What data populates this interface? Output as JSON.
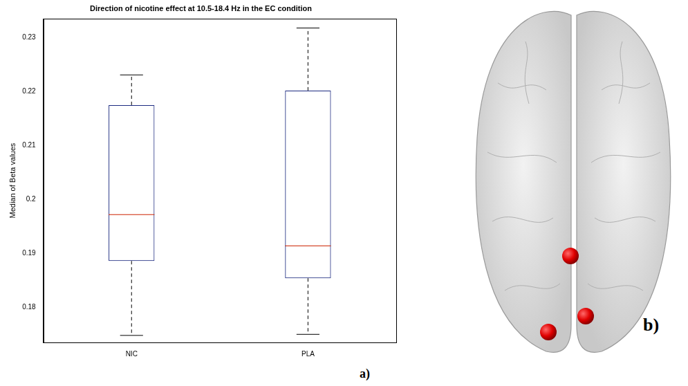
{
  "chart_data": {
    "type": "box",
    "title": "Direction of nicotine effect at 10.5-18.4 Hz in the EC condition",
    "ylabel": "Median of Beta values",
    "categories": [
      "NIC",
      "PLA"
    ],
    "whisker_low": [
      0.1748,
      0.175
    ],
    "q1": [
      0.1886,
      0.1854
    ],
    "median": [
      0.1972,
      0.1914
    ],
    "q3": [
      0.2175,
      0.2202
    ],
    "whisker_high": [
      0.2231,
      0.2318
    ],
    "color": "#1c2a80",
    "ylim": [
      0.1735,
      0.2335
    ],
    "yticks": [
      0.18,
      0.19,
      0.2,
      0.21,
      0.22,
      0.23
    ],
    "grid": false
  },
  "panel_labels": [
    "a)",
    "b)"
  ],
  "brain_markers": {
    "count": 3,
    "color": "#e00000"
  }
}
